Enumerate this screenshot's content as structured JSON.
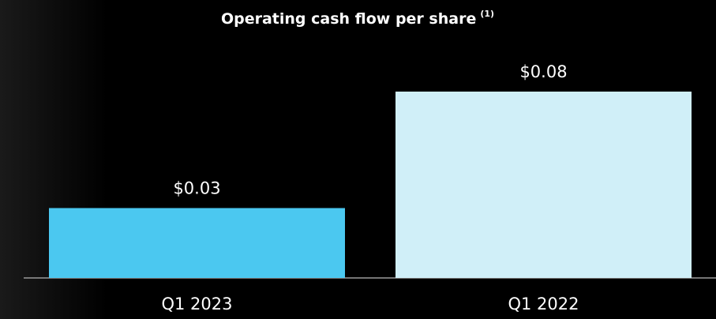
{
  "chart_data": {
    "type": "bar",
    "title": "Operating cash flow per share",
    "title_note": "(1)",
    "categories": [
      "Q1 2023",
      "Q1 2022"
    ],
    "values": [
      0.03,
      0.08
    ],
    "value_labels": [
      "$0.03",
      "$0.08"
    ],
    "colors": [
      "#4bc8f0",
      "#d0eff8"
    ]
  }
}
